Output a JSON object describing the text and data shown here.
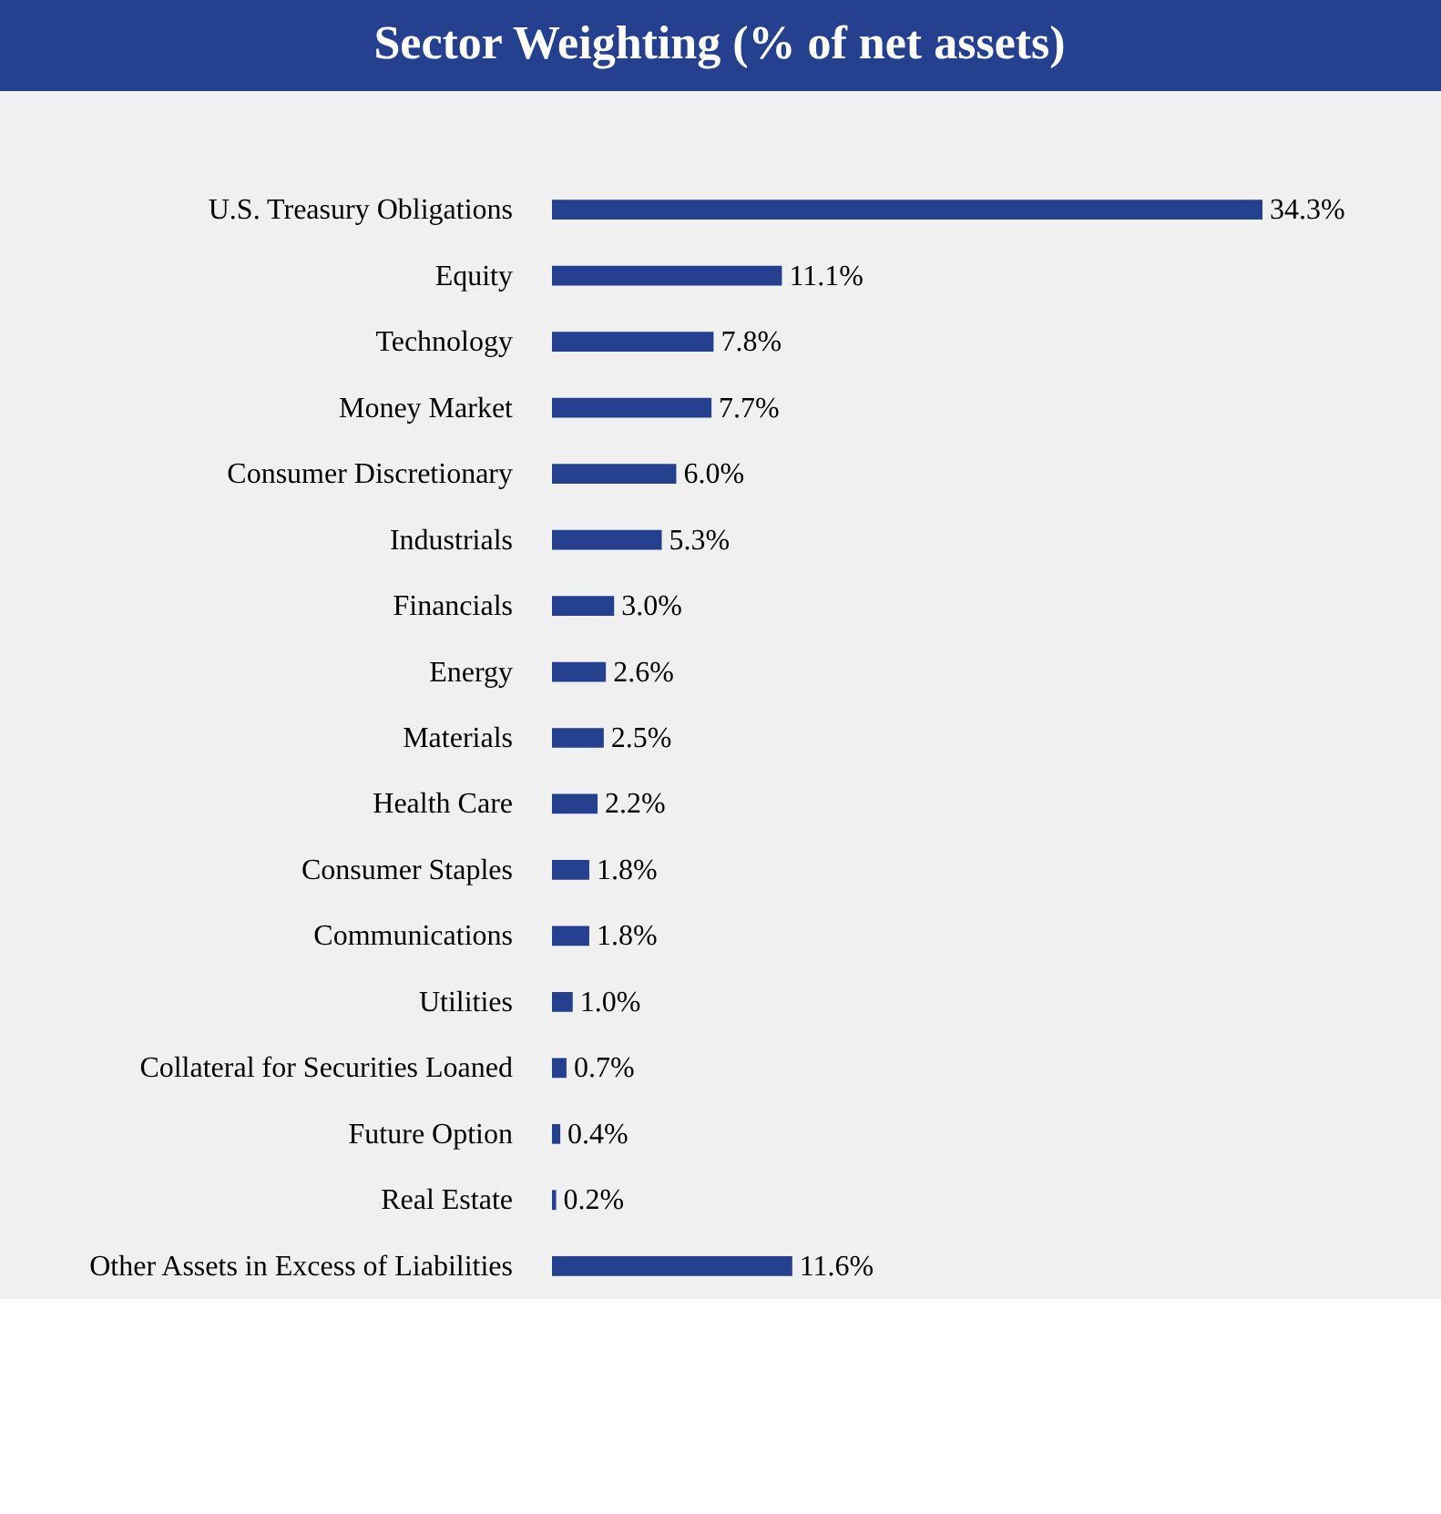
{
  "chart_data": {
    "type": "bar",
    "orientation": "horizontal",
    "title": "Sector Weighting (% of net assets)",
    "categories": [
      "U.S. Treasury Obligations",
      "Equity",
      "Technology",
      "Money Market",
      "Consumer Discretionary",
      "Industrials",
      "Financials",
      "Energy",
      "Materials",
      "Health Care",
      "Consumer Staples",
      "Communications",
      "Utilities",
      "Collateral for Securities Loaned",
      "Future Option",
      "Real Estate",
      "Other Assets in Excess of Liabilities"
    ],
    "values": [
      34.3,
      11.1,
      7.8,
      7.7,
      6.0,
      5.3,
      3.0,
      2.6,
      2.5,
      2.2,
      1.8,
      1.8,
      1.0,
      0.7,
      0.4,
      0.2,
      11.6
    ],
    "value_labels": [
      "34.3%",
      "11.1%",
      "7.8%",
      "7.7%",
      "6.0%",
      "5.3%",
      "3.0%",
      "2.6%",
      "2.5%",
      "2.2%",
      "1.8%",
      "1.8%",
      "1.0%",
      "0.7%",
      "0.4%",
      "0.2%",
      "11.6%"
    ],
    "color": "#24408e"
  }
}
